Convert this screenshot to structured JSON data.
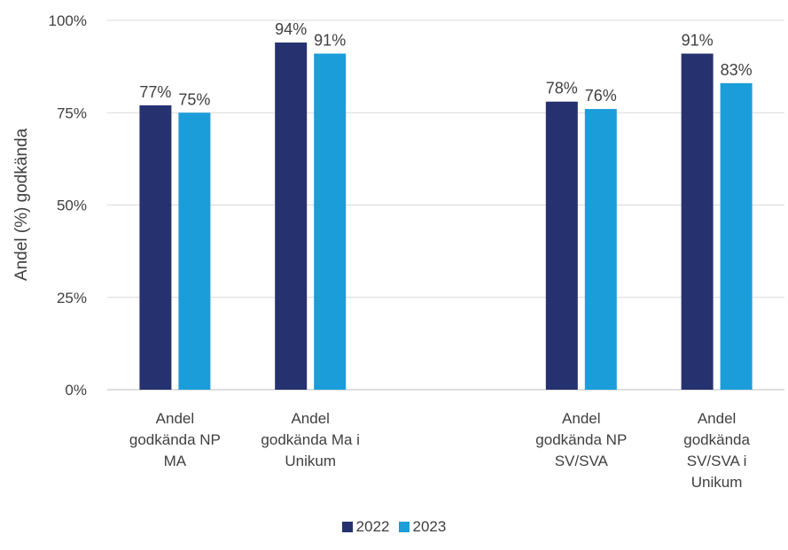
{
  "chart_data": {
    "type": "bar",
    "categories": [
      [
        "Andel",
        "godkända  NP",
        "MA"
      ],
      [
        "Andel",
        "godkända Ma i",
        "Unikum"
      ],
      [
        "",
        "",
        ""
      ],
      [
        "Andel",
        "godkända  NP",
        "SV/SVA"
      ],
      [
        "Andel",
        "godkända",
        "SV/SVA i",
        "Unikum"
      ]
    ],
    "series": [
      {
        "name": "2022",
        "color": "#263170",
        "values": [
          77,
          94,
          null,
          78,
          91
        ],
        "labels": [
          "77%",
          "94%",
          "",
          "78%",
          "91%"
        ]
      },
      {
        "name": "2023",
        "color": "#1b9dd9",
        "values": [
          75,
          91,
          null,
          76,
          83
        ],
        "labels": [
          "75%",
          "91%",
          "",
          "76%",
          "83%"
        ]
      }
    ],
    "ylabel": "Andel (%) godkända",
    "ylim": [
      0,
      100
    ],
    "yticks": [
      "0%",
      "25%",
      "50%",
      "75%",
      "100%"
    ],
    "grid": true,
    "legend": "bottom"
  }
}
